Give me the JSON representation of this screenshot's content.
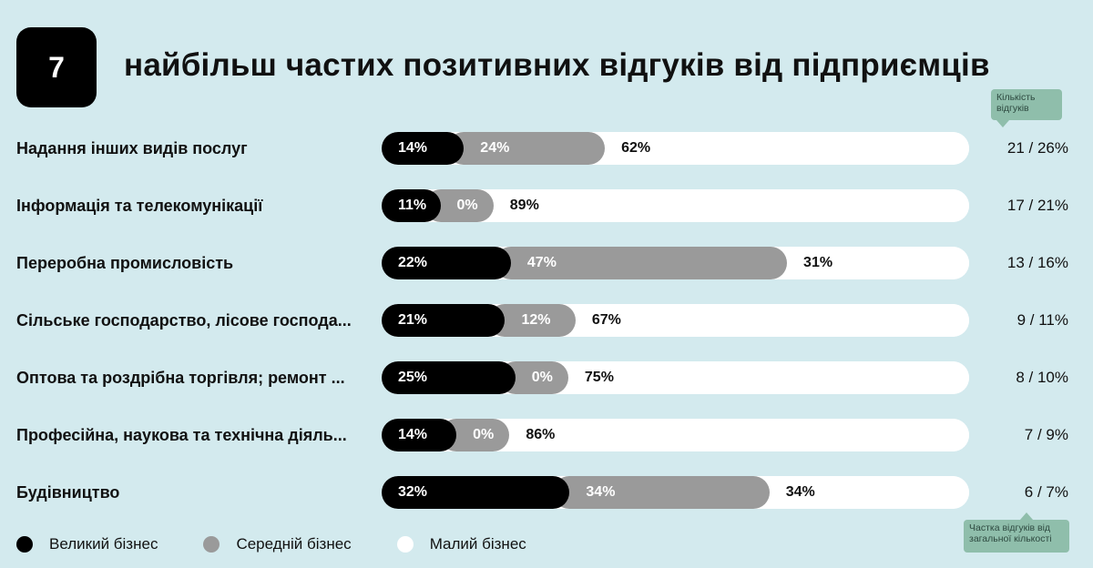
{
  "header": {
    "number": "7",
    "title": "найбільш частих позитивних відгуків від підприємців"
  },
  "annotations": {
    "count_note": "Кількість відгуків",
    "share_note": "Частка відгуків від загальної кількості"
  },
  "colors": {
    "background": "#d3eaee",
    "large": "#000000",
    "medium": "#9a9a9a",
    "small": "#ffffff",
    "tag": "#8fbeab"
  },
  "chart_data": {
    "type": "bar",
    "stacked": true,
    "orientation": "horizontal",
    "categories": [
      "Надання інших видів послуг",
      "Інформація та телекомунікації",
      "Переробна промисловість",
      "Сільське господарство, лісове господа...",
      "Оптова та роздрібна торгівля; ремонт ...",
      "Професійна, наукова та технічна діяль...",
      "Будівництво"
    ],
    "series": [
      {
        "name": "Великий бізнес",
        "values": [
          14,
          11,
          22,
          21,
          25,
          14,
          32
        ],
        "labels": [
          "14%",
          "11%",
          "22%",
          "21%",
          "25%",
          "14%",
          "32%"
        ]
      },
      {
        "name": "Середній бізнес",
        "values": [
          24,
          0,
          47,
          12,
          0,
          0,
          34
        ],
        "labels": [
          "24%",
          "0%",
          "47%",
          "12%",
          "0%",
          "0%",
          "34%"
        ]
      },
      {
        "name": "Малий бізнес",
        "values": [
          62,
          89,
          31,
          67,
          75,
          86,
          34
        ],
        "labels": [
          "62%",
          "89%",
          "31%",
          "67%",
          "75%",
          "86%",
          "34%"
        ]
      }
    ],
    "counts": [
      "21 / 26%",
      "17 / 21%",
      "13 / 16%",
      "9 / 11%",
      "8 / 10%",
      "7 / 9%",
      "6 / 7%"
    ],
    "xlim": [
      0,
      100
    ]
  }
}
